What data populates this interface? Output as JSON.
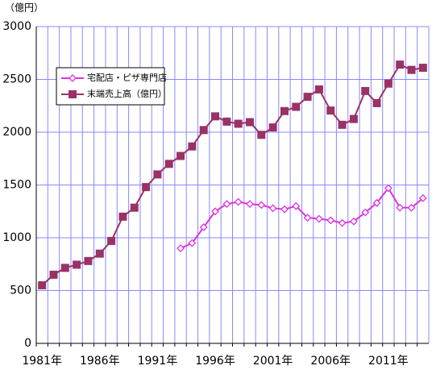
{
  "chart_data": {
    "type": "line",
    "y_unit_label": "（億円）",
    "categories": [
      "1981年",
      null,
      null,
      null,
      null,
      "1986年",
      null,
      null,
      null,
      null,
      "1991年",
      null,
      null,
      null,
      null,
      "1996年",
      null,
      null,
      null,
      null,
      "2001年",
      null,
      null,
      null,
      null,
      "2006年",
      null,
      null,
      null,
      null,
      "2011年",
      null,
      null,
      null
    ],
    "series": [
      {
        "name": "宅配店・ピザ専門店",
        "color": "#dd33dd",
        "marker": "diamond",
        "values": [
          null,
          null,
          null,
          null,
          null,
          null,
          null,
          null,
          null,
          null,
          null,
          null,
          900,
          950,
          1100,
          1250,
          1320,
          1340,
          1320,
          1310,
          1280,
          1270,
          1300,
          1190,
          1180,
          1165,
          1140,
          1155,
          1240,
          1330,
          1470,
          1285,
          1285,
          1375
        ]
      },
      {
        "name": "末端売上高（億円）",
        "color": "#993366",
        "marker": "square",
        "values": [
          550,
          650,
          715,
          745,
          780,
          850,
          970,
          1200,
          1285,
          1480,
          1600,
          1700,
          1775,
          1865,
          2020,
          2150,
          2100,
          2080,
          2095,
          1975,
          2045,
          2200,
          2240,
          2335,
          2405,
          2205,
          2070,
          2125,
          2390,
          2275,
          2460,
          2640,
          2590,
          2610
        ]
      }
    ],
    "ylim": [
      0,
      3000
    ],
    "yticks": [
      0,
      500,
      1000,
      1500,
      2000,
      2500,
      3000
    ],
    "grid": true
  }
}
